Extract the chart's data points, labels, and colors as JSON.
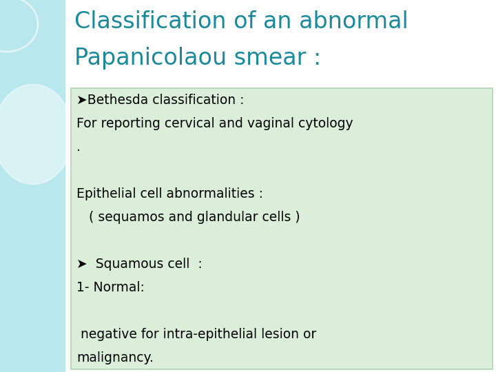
{
  "title_line1": "Classification of an abnormal",
  "title_line2": "Papanicolaou smear :",
  "title_color": "#1a8a9a",
  "background_color": "#ffffff",
  "left_panel_color": "#b8e8ee",
  "content_box_color": "#daeeda",
  "content_box_border": "#b0d4b0",
  "content_lines": [
    "➤Bethesda classification :",
    "For reporting cervical and vaginal cytology",
    ".",
    "",
    "Epithelial cell abnormalities :",
    "   ( sequamos and glandular cells )",
    "",
    "➤  Squamous cell  :",
    "1- Normal:",
    "",
    " negative for intra-epithelial lesion or",
    "malignancy."
  ],
  "content_text_color": "#000000",
  "content_fontsize": 13.5,
  "title_fontsize": 24,
  "fig_width": 7.2,
  "fig_height": 5.4,
  "dpi": 100
}
